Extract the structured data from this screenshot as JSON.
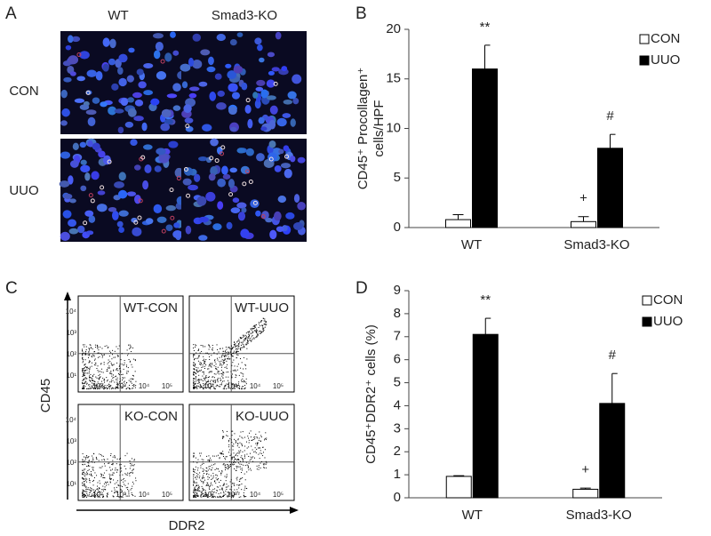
{
  "panels": {
    "A": {
      "label": "A",
      "columns": [
        "WT",
        "Smad3-KO"
      ],
      "rows": [
        "CON",
        "UUO"
      ]
    },
    "B": {
      "label": "B"
    },
    "C": {
      "label": "C",
      "plots": [
        "WT-CON",
        "WT-UUO",
        "KO-CON",
        "KO-UUO"
      ],
      "ylabel": "CD45",
      "xlabel": "DDR2",
      "xticks": [
        "10²",
        "10³",
        "10⁴",
        "10⁵"
      ],
      "yticks": [
        "10¹",
        "10²",
        "10³",
        "10⁴"
      ]
    },
    "D": {
      "label": "D"
    }
  },
  "chart_data": [
    {
      "type": "bar",
      "categories": [
        "WT",
        "Smad3-KO"
      ],
      "series": [
        {
          "name": "CON",
          "color": "#ffffff",
          "values": [
            0.8,
            0.6
          ],
          "errors": [
            0.5,
            0.5
          ]
        },
        {
          "name": "UUO",
          "color": "#000000",
          "values": [
            16,
            8
          ],
          "errors": [
            2.4,
            1.4
          ]
        }
      ],
      "ylabel": [
        "CD45⁺ Procollagen⁺",
        "cells/HPF"
      ],
      "ylim": [
        0,
        20
      ],
      "yticks": [
        0,
        5,
        10,
        15,
        20
      ],
      "annotations": [
        {
          "text": "**",
          "category": "WT",
          "series": "UUO"
        },
        {
          "text": "#",
          "category": "Smad3-KO",
          "series": "UUO"
        },
        {
          "text": "+",
          "category": "Smad3-KO",
          "series": "CON"
        }
      ]
    },
    {
      "type": "bar",
      "categories": [
        "WT",
        "Smad3-KO"
      ],
      "series": [
        {
          "name": "CON",
          "color": "#ffffff",
          "values": [
            0.93,
            0.37
          ],
          "errors": [
            0.03,
            0.05
          ]
        },
        {
          "name": "UUO",
          "color": "#000000",
          "values": [
            7.1,
            4.1
          ],
          "errors": [
            0.7,
            1.3
          ]
        }
      ],
      "ylabel": [
        "CD45⁺DDR2⁺ cells (%)"
      ],
      "ylim": [
        0,
        9
      ],
      "yticks": [
        0,
        1,
        2,
        3,
        4,
        5,
        6,
        7,
        8,
        9
      ],
      "annotations": [
        {
          "text": "**",
          "category": "WT",
          "series": "UUO"
        },
        {
          "text": "#",
          "category": "Smad3-KO",
          "series": "UUO"
        },
        {
          "text": "+",
          "category": "Smad3-KO",
          "series": "CON"
        }
      ]
    }
  ]
}
